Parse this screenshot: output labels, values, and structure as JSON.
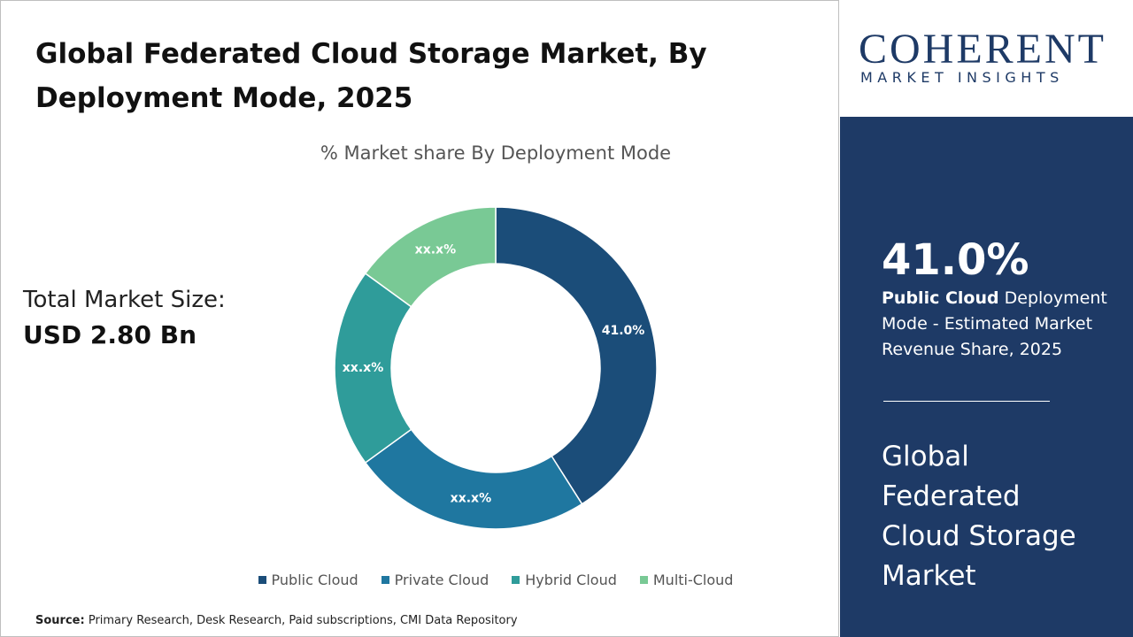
{
  "header": {
    "title": "Global Federated Cloud Storage Market, By Deployment Mode, 2025"
  },
  "total": {
    "label": "Total Market Size:",
    "value": "USD 2.80 Bn"
  },
  "chart_data": {
    "type": "donut",
    "title": "% Market share By Deployment Mode",
    "categories": [
      "Public Cloud",
      "Private Cloud",
      "Hybrid Cloud",
      "Multi-Cloud"
    ],
    "values": [
      41.0,
      24,
      20,
      15
    ],
    "value_labels": [
      "41.0%",
      "xx.x%",
      "xx.x%",
      "xx.x%"
    ],
    "colors": [
      "#1b4d79",
      "#1f77a0",
      "#2f9c9a",
      "#79c995"
    ]
  },
  "source": {
    "label": "Source:",
    "text": "Primary Research, Desk Research, Paid subscriptions, CMI Data Repository"
  },
  "logo": {
    "name": "COHERENT",
    "tagline": "MARKET INSIGHTS"
  },
  "highlight": {
    "value": "41.0%",
    "bold": "Public Cloud",
    "text": "Deployment Mode - Estimated Market Revenue Share, 2025"
  },
  "market_name": "Global Federated Cloud Storage Market"
}
